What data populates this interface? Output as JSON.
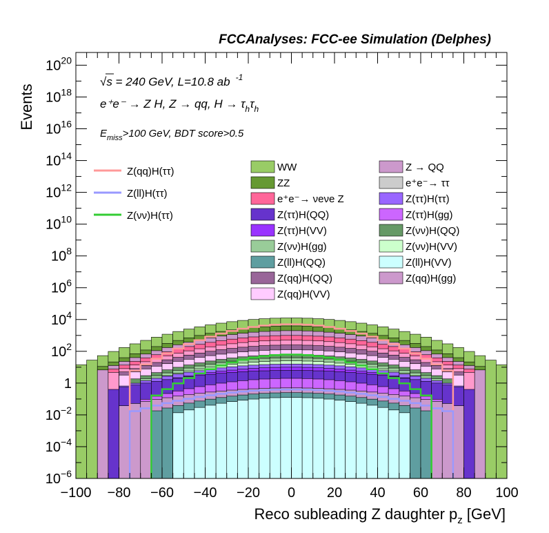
{
  "header": "FCCAnalyses: FCC-ee Simulation (Delphes)",
  "annotations": {
    "energy": "√s = 240 GeV, L=10.8 ab",
    "energy_exp": "-1",
    "process": "e⁺e⁻ → Z H, Z → qq, H → τ",
    "process_sub1": "h",
    "process_tau2": "τ",
    "process_sub2": "h",
    "cut_e": "E",
    "cut_sub": "miss",
    "cut_rest": ">100 GeV, BDT score>0.5"
  },
  "chart_data": {
    "type": "area",
    "xlabel": "Reco subleading Z daughter p",
    "xlabel_sub": "z",
    "xlabel_unit": "[GeV]",
    "ylabel": "Events",
    "xlim": [
      -100,
      100
    ],
    "ylim_log10": [
      -6,
      20.8
    ],
    "y_scale": "log",
    "x_ticks": [
      "−100",
      "−80",
      "−60",
      "−40",
      "−20",
      "0",
      "20",
      "40",
      "60",
      "80",
      "100"
    ],
    "y_ticks": [
      {
        "base": "10",
        "exp": "−6",
        "v": -6
      },
      {
        "base": "10",
        "exp": "−4",
        "v": -4
      },
      {
        "base": "10",
        "exp": "−2",
        "v": -2
      },
      {
        "base": "1",
        "exp": "",
        "v": 0
      },
      {
        "base": "10",
        "exp": "2",
        "v": 2
      },
      {
        "base": "10",
        "exp": "4",
        "v": 4
      },
      {
        "base": "10",
        "exp": "6",
        "v": 6
      },
      {
        "base": "10",
        "exp": "8",
        "v": 8
      },
      {
        "base": "10",
        "exp": "10",
        "v": 10
      },
      {
        "base": "10",
        "exp": "12",
        "v": 12
      },
      {
        "base": "10",
        "exp": "14",
        "v": 14
      },
      {
        "base": "10",
        "exp": "16",
        "v": 16
      },
      {
        "base": "10",
        "exp": "18",
        "v": 18
      },
      {
        "base": "10",
        "exp": "20",
        "v": 20
      }
    ],
    "background_stack": [
      {
        "name": "Z(ll)H(VV)",
        "color": "#ccffff",
        "halfwidth": 56,
        "peak_log": -0.9,
        "edge_log": -2.0
      },
      {
        "name": "Z(ll)H(QQ)",
        "color": "#5f9ea0",
        "halfwidth": 64,
        "peak_log": -0.6,
        "edge_log": -1.8
      },
      {
        "name": "Z(qq)H(gg)",
        "color": "#cc99cc",
        "halfwidth": 80,
        "peak_log": -0.3,
        "edge_log": -1.5
      },
      {
        "name": "Z(ττ)H(gg)",
        "color": "#cc66ff",
        "halfwidth": 72,
        "peak_log": 0.3,
        "edge_log": -1.2
      },
      {
        "name": "Z(ττ)H(QQ)",
        "color": "#6633cc",
        "halfwidth": 86,
        "peak_log": 0.8,
        "edge_log": -0.5
      },
      {
        "name": "Z(ττ)H(VV)",
        "color": "#9933ff",
        "halfwidth": 76,
        "peak_log": 1.0,
        "edge_log": -0.4
      },
      {
        "name": "Z(ττ)H(ττ)",
        "color": "#9966ff",
        "halfwidth": 78,
        "peak_log": 1.2,
        "edge_log": -0.2
      },
      {
        "name": "Z(νν)H(VV)",
        "color": "#ccffcc",
        "halfwidth": 70,
        "peak_log": 1.4,
        "edge_log": 0.0
      },
      {
        "name": "Z(νν)H(gg)",
        "color": "#99cc99",
        "halfwidth": 72,
        "peak_log": 1.6,
        "edge_log": 0.1
      },
      {
        "name": "Z(νν)H(QQ)",
        "color": "#669966",
        "halfwidth": 74,
        "peak_log": 1.8,
        "edge_log": 0.2
      },
      {
        "name": "Z(qq)H(VV)",
        "color": "#ffccff",
        "halfwidth": 80,
        "peak_log": 2.1,
        "edge_log": 0.4
      },
      {
        "name": "Z(qq)H(QQ)",
        "color": "#996699",
        "halfwidth": 82,
        "peak_log": 2.4,
        "edge_log": 0.5
      },
      {
        "name": "e⁺e⁻ → ττ",
        "color": "#ff99cc",
        "halfwidth": 84,
        "peak_log": 2.7,
        "edge_log": 0.6
      },
      {
        "name": "e⁺e⁻→ νeνe Z",
        "color": "#ff6699",
        "halfwidth": 86,
        "peak_log": 3.0,
        "edge_log": 0.7
      },
      {
        "name": "Z → QQ",
        "color": "#cc99cc",
        "halfwidth": 88,
        "peak_log": 3.3,
        "edge_log": 0.8
      },
      {
        "name": "ZZ",
        "color": "#669933",
        "halfwidth": 90,
        "peak_log": 3.6,
        "edge_log": 0.9
      },
      {
        "name": "WW",
        "color": "#99cc66",
        "halfwidth": 100,
        "peak_log": 4.1,
        "edge_log": 1.0
      }
    ],
    "signal_lines": [
      {
        "name": "Z(qq)H(ττ)",
        "color": "#ff9999",
        "halfwidth": 76,
        "peak_log": 3.7,
        "edge_log": 0.5
      },
      {
        "name": "Z(ll)H(ττ)",
        "color": "#9999ff",
        "halfwidth": 76,
        "peak_log": -0.4,
        "edge_log": -1.9
      },
      {
        "name": "Z(νν)H(ττ)",
        "color": "#33cc33",
        "halfwidth": 64,
        "peak_log": 1.8,
        "edge_log": -0.9
      }
    ],
    "legend_columns": [
      [
        "WW",
        "ZZ",
        "e⁺e⁻→ νeνe Z",
        "Z(ττ)H(QQ)",
        "Z(ττ)H(VV)",
        "Z(νν)H(gg)",
        "Z(ll)H(QQ)",
        "Z(qq)H(QQ)",
        "Z(qq)H(VV)"
      ],
      [
        "Z → QQ",
        "e⁺e⁻→ ττ",
        "Z(ττ)H(ττ)",
        "Z(ττ)H(gg)",
        "Z(νν)H(QQ)",
        "Z(νν)H(VV)",
        "Z(ll)H(VV)",
        "Z(qq)H(gg)"
      ]
    ],
    "grid": false,
    "legend_placement": "top"
  }
}
